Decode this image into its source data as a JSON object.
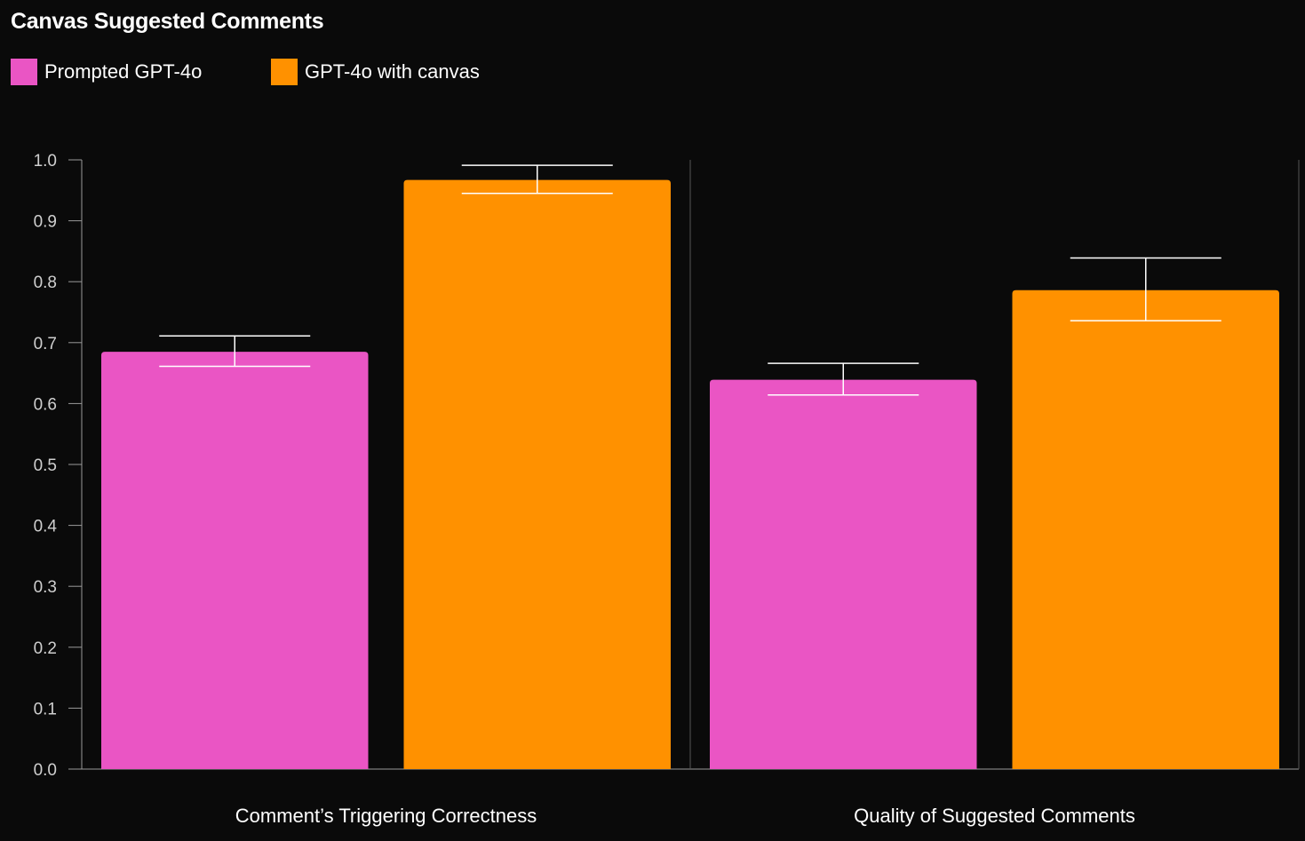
{
  "chart_data": {
    "type": "bar",
    "title": "Canvas Suggested Comments",
    "categories": [
      "Comment’s Triggering Correctness",
      "Quality of Suggested Comments"
    ],
    "series": [
      {
        "name": "Prompted GPT-4o",
        "color": "#ea55c4",
        "values": [
          0.685,
          0.639
        ],
        "error_low": [
          0.661,
          0.614
        ],
        "error_high": [
          0.711,
          0.666
        ]
      },
      {
        "name": "GPT-4o with canvas",
        "color": "#ff9100",
        "values": [
          0.967,
          0.786
        ],
        "error_low": [
          0.945,
          0.736
        ],
        "error_high": [
          0.991,
          0.839
        ]
      }
    ],
    "ylim": [
      0,
      1.0
    ],
    "yticks": [
      "0.0",
      "0.1",
      "0.2",
      "0.3",
      "0.4",
      "0.5",
      "0.6",
      "0.7",
      "0.8",
      "0.9",
      "1.0"
    ],
    "xlabel": "",
    "ylabel": "",
    "legend": "top-left",
    "grid": false
  }
}
